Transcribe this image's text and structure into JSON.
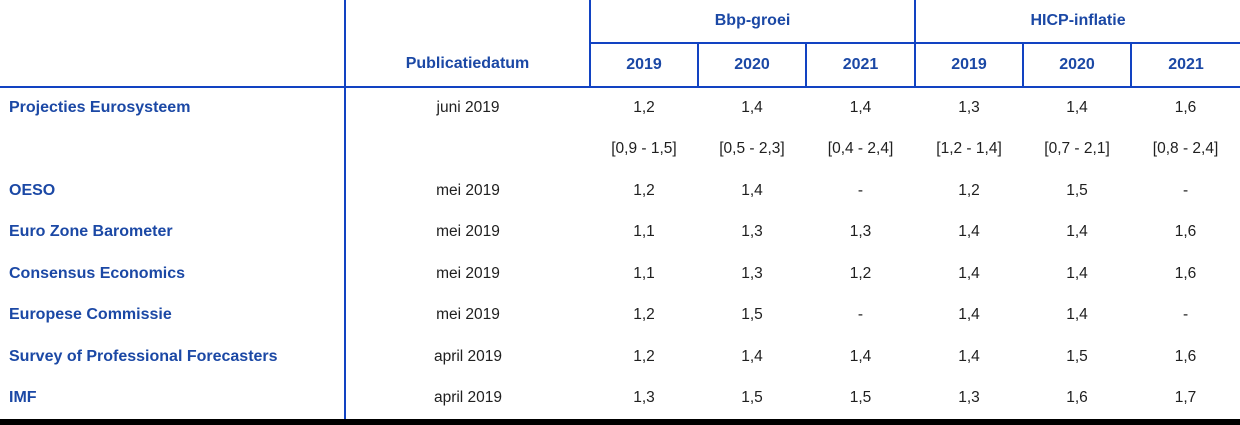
{
  "chart_data": {
    "type": "table",
    "date_header": "Publicatiedatum",
    "column_group_headers": [
      "Bbp-groei",
      "HICP-inflatie"
    ],
    "year_columns": [
      "2019",
      "2020",
      "2021",
      "2019",
      "2020",
      "2021"
    ],
    "rows": [
      {
        "source": "Projecties Eurosysteem",
        "date": "juni 2019",
        "values": [
          "1,2",
          "1,4",
          "1,4",
          "1,3",
          "1,4",
          "1,6"
        ],
        "ranges": [
          "[0,9 - 1,5]",
          "[0,5 - 2,3]",
          "[0,4 - 2,4]",
          "[1,2 - 1,4]",
          "[0,7 - 2,1]",
          "[0,8 - 2,4]"
        ]
      },
      {
        "source": "OESO",
        "date": "mei 2019",
        "values": [
          "1,2",
          "1,4",
          "-",
          "1,2",
          "1,5",
          "-"
        ]
      },
      {
        "source": "Euro Zone Barometer",
        "date": "mei 2019",
        "values": [
          "1,1",
          "1,3",
          "1,3",
          "1,4",
          "1,4",
          "1,6"
        ]
      },
      {
        "source": "Consensus Economics",
        "date": "mei 2019",
        "values": [
          "1,1",
          "1,3",
          "1,2",
          "1,4",
          "1,4",
          "1,6"
        ]
      },
      {
        "source": "Europese Commissie",
        "date": "mei 2019",
        "values": [
          "1,2",
          "1,5",
          "-",
          "1,4",
          "1,4",
          "-"
        ]
      },
      {
        "source": "Survey of Professional Forecasters",
        "date": "april 2019",
        "values": [
          "1,2",
          "1,4",
          "1,4",
          "1,4",
          "1,5",
          "1,6"
        ]
      },
      {
        "source": "IMF",
        "date": "april 2019",
        "values": [
          "1,3",
          "1,5",
          "1,5",
          "1,3",
          "1,6",
          "1,7"
        ]
      }
    ]
  },
  "colors": {
    "line_blue": "#1243c2",
    "header_text_blue": "#1b48a5",
    "body_text": "#202020",
    "bottom_bar": "#000000",
    "background": "#ffffff"
  }
}
